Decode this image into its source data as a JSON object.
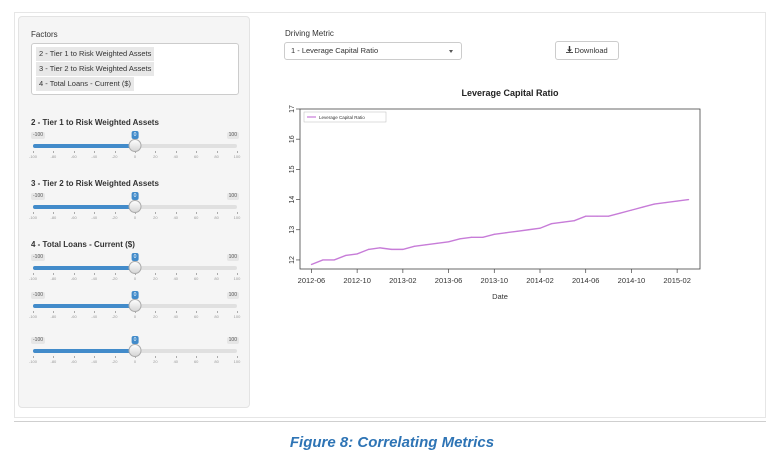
{
  "sidebar": {
    "factors_label": "Factors",
    "factors": [
      {
        "label": "2 - Tier 1 to Risk Weighted Assets",
        "selected": true
      },
      {
        "label": "3 - Tier 2 to Risk Weighted Assets",
        "selected": true
      },
      {
        "label": "4 - Total Loans - Current ($)",
        "selected": true
      }
    ],
    "sliders": [
      {
        "title": "2 - Tier 1 to Risk Weighted Assets",
        "min": "-100",
        "max": "100",
        "value": "0"
      },
      {
        "title": "3 - Tier 2 to Risk Weighted Assets",
        "min": "-100",
        "max": "100",
        "value": "0"
      },
      {
        "title": "4 - Total Loans - Current ($)",
        "min": "-100",
        "max": "100",
        "value": "0"
      },
      {
        "title": "",
        "min": "-100",
        "max": "100",
        "value": "0"
      },
      {
        "title": "",
        "min": "-100",
        "max": "100",
        "value": "0"
      }
    ],
    "tick_labels": [
      "-100",
      "-80",
      "-60",
      "-40",
      "-20",
      "0",
      "20",
      "40",
      "60",
      "80",
      "100"
    ]
  },
  "main": {
    "driving_metric_label": "Driving Metric",
    "driving_metric_value": "1 - Leverage Capital Ratio",
    "download_label": "Download",
    "download_icon": "download-icon"
  },
  "colors": {
    "accent": "#428bca",
    "series": "#c77cd8",
    "caption": "#2e74b5"
  },
  "caption": "Figure 8: Correlating Metrics",
  "chart_data": {
    "type": "line",
    "title": "Leverage Capital Ratio",
    "xlabel": "Date",
    "ylabel": "",
    "x_tick_labels": [
      "2012-06",
      "2012-10",
      "2013-02",
      "2013-06",
      "2013-10",
      "2014-02",
      "2014-06",
      "2014-10",
      "2015-02"
    ],
    "y_ticks": [
      12,
      13,
      14,
      15,
      16,
      17
    ],
    "ylim": [
      11.7,
      17.0
    ],
    "xlim": [
      "2012-05",
      "2015-04"
    ],
    "legend": "top-left",
    "series": [
      {
        "name": "Leverage Capital Ratio",
        "x": [
          "2012-06",
          "2012-07",
          "2012-08",
          "2012-09",
          "2012-10",
          "2012-11",
          "2012-12",
          "2013-01",
          "2013-02",
          "2013-03",
          "2013-04",
          "2013-05",
          "2013-06",
          "2013-07",
          "2013-08",
          "2013-09",
          "2013-10",
          "2013-11",
          "2013-12",
          "2014-01",
          "2014-02",
          "2014-03",
          "2014-04",
          "2014-05",
          "2014-06",
          "2014-07",
          "2014-08",
          "2014-09",
          "2014-10",
          "2014-11",
          "2014-12",
          "2015-01",
          "2015-02",
          "2015-03"
        ],
        "values": [
          11.85,
          12.0,
          12.0,
          12.15,
          12.2,
          12.35,
          12.4,
          12.35,
          12.35,
          12.45,
          12.5,
          12.55,
          12.6,
          12.7,
          12.75,
          12.75,
          12.85,
          12.9,
          12.95,
          13.0,
          13.05,
          13.2,
          13.25,
          13.3,
          13.45,
          13.45,
          13.45,
          13.55,
          13.65,
          13.75,
          13.85,
          13.9,
          13.95,
          14.0
        ]
      }
    ]
  }
}
